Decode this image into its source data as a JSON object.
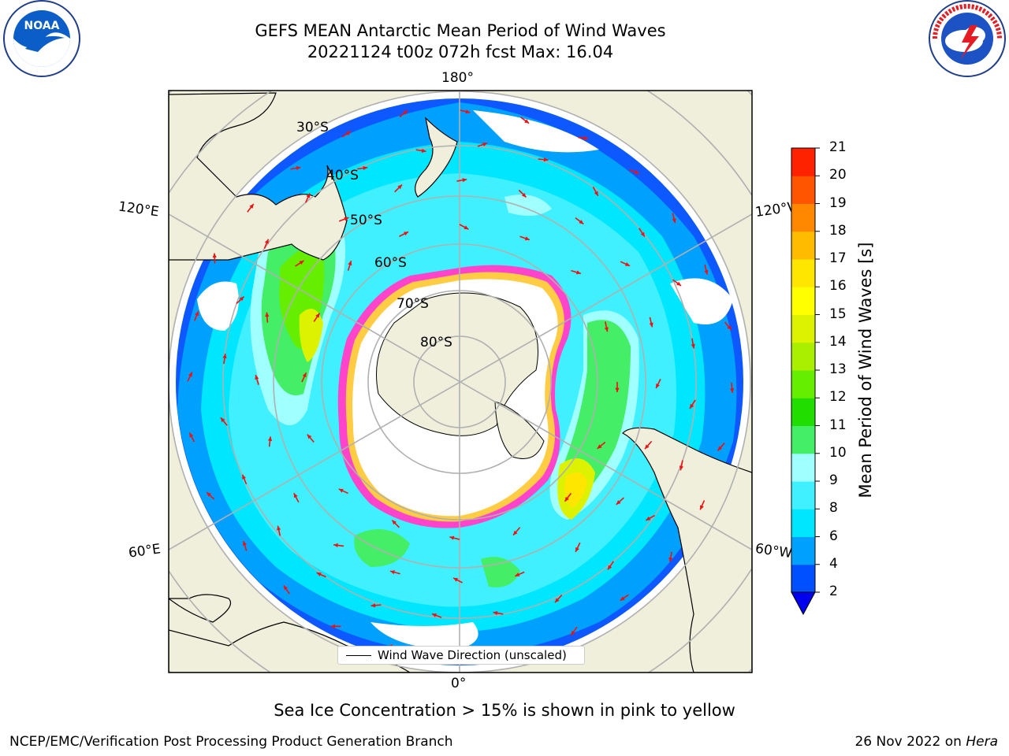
{
  "header": {
    "title_line1": "GEFS MEAN Antarctic Mean Period of Wind Waves",
    "title_line2": "20221124 t00z 072h fcst   Max: 16.04"
  },
  "logos": {
    "left": {
      "text": "NOAA",
      "ring_text": "NATIONAL OCEANIC AND ATMOSPHERIC ADMINISTRATION · U.S. DEPARTMENT OF COMMERCE",
      "icon": "noaa-logo-icon"
    },
    "right": {
      "ring_text": "NATIONAL WEATHER SERVICE",
      "icon": "nws-logo-icon"
    }
  },
  "map": {
    "longitude_labels": {
      "top": "180°",
      "bottom": "0°",
      "left_upper": "120°E",
      "right_upper": "120°W",
      "left_lower": "60°E",
      "right_lower": "60°W"
    },
    "latitude_labels": [
      "30°S",
      "40°S",
      "50°S",
      "60°S",
      "70°S",
      "80°S"
    ],
    "colors": {
      "land": "#efefdc",
      "ocean_background": "#ffffff",
      "grid": "#b0b0b0",
      "arrow": "#ee1111",
      "ice_pink": "#ff44cc",
      "ice_yellow": "#ffcc44"
    }
  },
  "legend": {
    "label": "Wind Wave Direction (unscaled)"
  },
  "colorbar": {
    "title": "Mean Period of Wind Waves [s]",
    "ticks": [
      "2",
      "4",
      "6",
      "8",
      "9",
      "10",
      "11",
      "12",
      "13",
      "14",
      "15",
      "16",
      "17",
      "18",
      "19",
      "20",
      "21"
    ],
    "colors": [
      "#0050ff",
      "#00a0ff",
      "#00e6ff",
      "#40f0ff",
      "#a0ffff",
      "#44ee66",
      "#22dd00",
      "#66ee00",
      "#aaee00",
      "#ddf200",
      "#ffff00",
      "#ffe600",
      "#ffbb00",
      "#ff8800",
      "#ff5500",
      "#ff2200"
    ],
    "under_color": "#0000ee"
  },
  "footer": {
    "note": "Sea Ice Concentration > 15% is shown in pink to yellow",
    "producer": "NCEP/EMC/Verification Post Processing Product Generation Branch",
    "date_prefix": "26 Nov 2022 on ",
    "host": "Hera"
  }
}
